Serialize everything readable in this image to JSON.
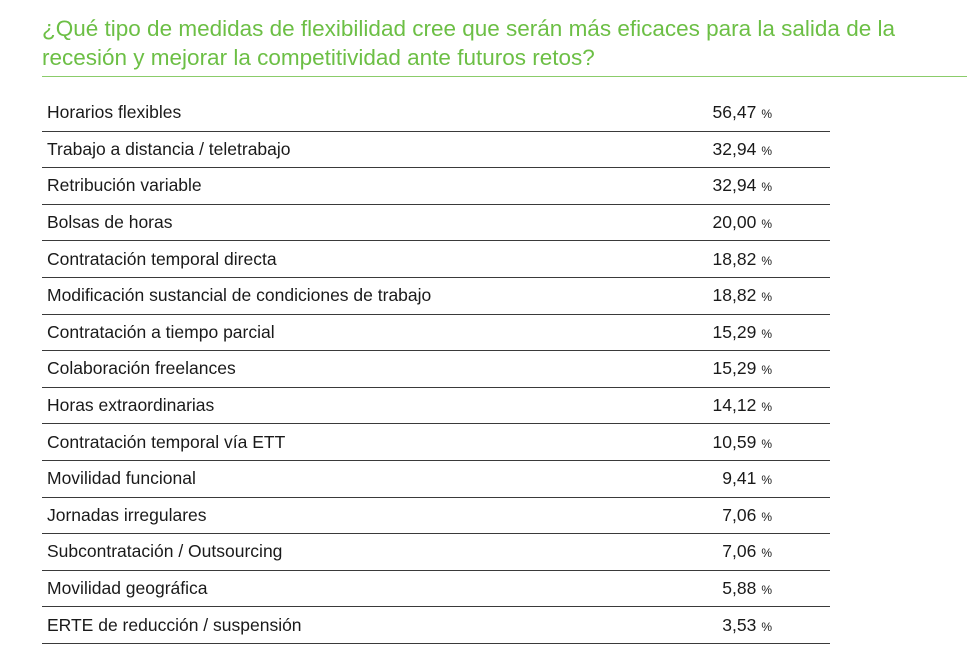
{
  "title": "¿Qué tipo de medidas de flexibilidad cree que serán más eficaces para la salida de la recesión y mejorar la competitividad ante futuros retos?",
  "unit": "%",
  "rows": [
    {
      "label": "Horarios flexibles",
      "value": "56,47"
    },
    {
      "label": "Trabajo a distancia / teletrabajo",
      "value": "32,94"
    },
    {
      "label": "Retribución variable",
      "value": "32,94"
    },
    {
      "label": "Bolsas de horas",
      "value": "20,00"
    },
    {
      "label": "Contratación temporal directa",
      "value": "18,82"
    },
    {
      "label": "Modificación sustancial de condiciones de trabajo",
      "value": "18,82"
    },
    {
      "label": "Contratación a tiempo parcial",
      "value": "15,29"
    },
    {
      "label": "Colaboración freelances",
      "value": "15,29"
    },
    {
      "label": "Horas extraordinarias",
      "value": "14,12"
    },
    {
      "label": "Contratación temporal vía ETT",
      "value": "10,59"
    },
    {
      "label": "Movilidad funcional",
      "value": "9,41"
    },
    {
      "label": "Jornadas irregulares",
      "value": "7,06"
    },
    {
      "label": "Subcontratación / Outsourcing",
      "value": "7,06"
    },
    {
      "label": "Movilidad geográfica",
      "value": "5,88"
    },
    {
      "label": "ERTE de reducción / suspensión",
      "value": "3,53"
    }
  ]
}
